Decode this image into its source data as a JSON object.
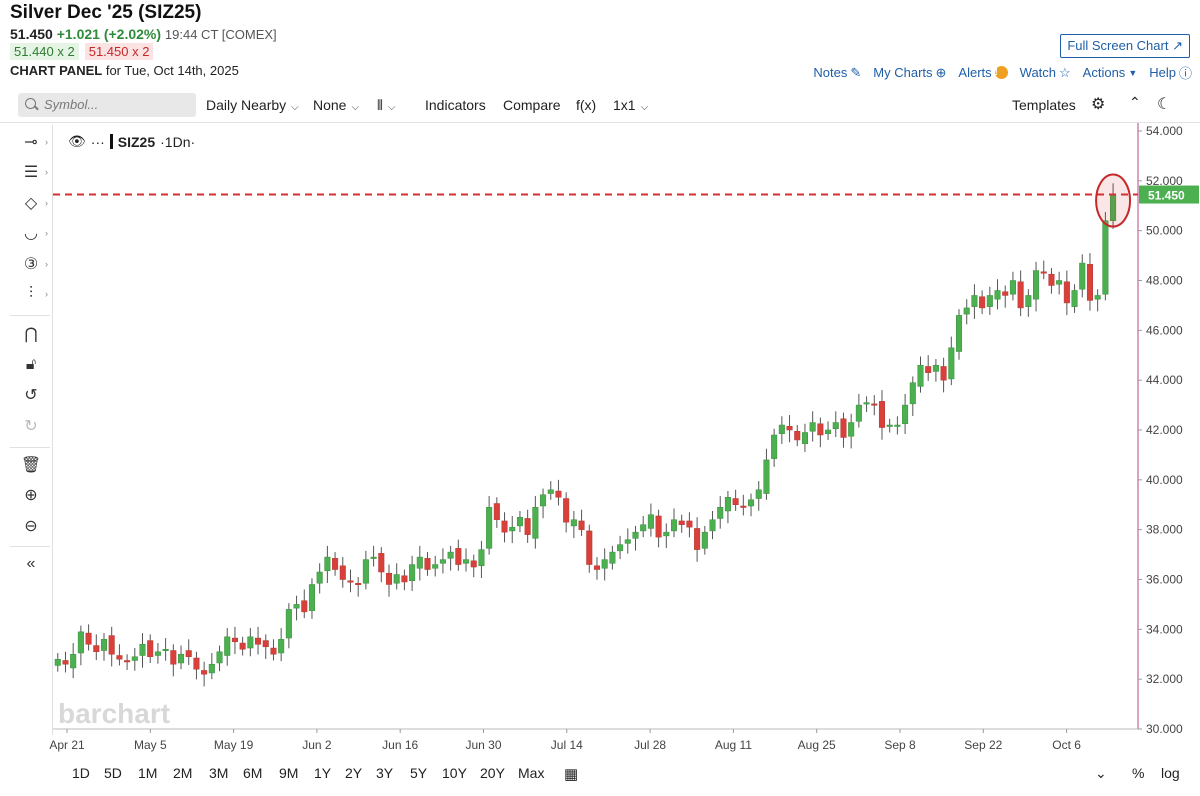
{
  "header": {
    "title": "Silver Dec '25 (SIZ25)",
    "last": "51.450",
    "change": "+1.021 (+2.02%)",
    "time": "19:44 CT [COMEX]",
    "bid": "51.440 x 2",
    "ask": "51.450 x 2",
    "panel_label": "CHART PANEL",
    "panel_date": "for Tue, Oct 14th, 2025"
  },
  "links": {
    "fullscreen": "Full Screen Chart",
    "notes": "Notes",
    "mycharts": "My Charts",
    "alerts": "Alerts",
    "watch": "Watch",
    "actions": "Actions",
    "help": "Help"
  },
  "toolbar": {
    "search_placeholder": "Symbol...",
    "period": "Daily Nearby",
    "none": "None",
    "indicators": "Indicators",
    "compare": "Compare",
    "fx": "f(x)",
    "layout": "1x1",
    "templates": "Templates"
  },
  "legend": {
    "symbol": "SIZ25",
    "interval": "·1Dn·"
  },
  "watermark": "barchart",
  "ranges": [
    "1D",
    "5D",
    "1M",
    "2M",
    "3M",
    "6M",
    "9M",
    "1Y",
    "2Y",
    "3Y",
    "5Y",
    "10Y",
    "20Y",
    "Max"
  ],
  "bottom_right": {
    "percent": "%",
    "log": "log"
  },
  "colors": {
    "up": "#4caf50",
    "down": "#d9403a",
    "price_line": "#d32f2f",
    "axis": "#b5478c",
    "link": "#1f5fa8"
  },
  "chart_data": {
    "type": "candlestick",
    "ylim": [
      30,
      54
    ],
    "yticks": [
      "54.000",
      "52.000",
      "50.000",
      "48.000",
      "46.000",
      "44.000",
      "42.000",
      "40.000",
      "38.000",
      "36.000",
      "34.000",
      "32.000",
      "30.000"
    ],
    "xticks": [
      "Apr 21",
      "May 5",
      "May 19",
      "Jun 2",
      "Jun 16",
      "Jun 30",
      "Jul 14",
      "Jul 28",
      "Aug 11",
      "Aug 25",
      "Sep 8",
      "Sep 22",
      "Oct 6"
    ],
    "last_price_label": "51.450",
    "last_price": 51.45,
    "closes": [
      32.8,
      32.6,
      33.0,
      33.9,
      33.4,
      33.1,
      33.6,
      33.0,
      32.8,
      32.7,
      32.9,
      33.4,
      32.9,
      33.1,
      33.2,
      32.6,
      33.0,
      32.9,
      32.4,
      32.2,
      32.6,
      33.1,
      33.7,
      33.5,
      33.2,
      33.7,
      33.4,
      33.3,
      33.0,
      33.6,
      34.8,
      35.0,
      34.7,
      35.8,
      36.3,
      36.9,
      36.4,
      36.0,
      35.9,
      35.8,
      36.8,
      36.9,
      36.3,
      35.8,
      36.2,
      35.9,
      36.6,
      36.9,
      36.4,
      36.6,
      36.8,
      37.1,
      36.6,
      36.8,
      36.5,
      37.2,
      38.9,
      38.4,
      37.9,
      38.1,
      38.5,
      37.8,
      38.9,
      39.4,
      39.6,
      39.3,
      38.3,
      38.4,
      38.0,
      36.6,
      36.4,
      36.8,
      37.1,
      37.4,
      37.6,
      37.9,
      38.2,
      38.6,
      37.7,
      37.9,
      38.4,
      38.2,
      38.1,
      37.2,
      37.9,
      38.4,
      38.9,
      39.3,
      39.0,
      38.9,
      39.2,
      39.6,
      40.8,
      41.8,
      42.2,
      42.0,
      41.6,
      41.9,
      42.3,
      41.8,
      42.0,
      42.3,
      41.7,
      42.3,
      43.0,
      43.1,
      43.0,
      42.1,
      42.2,
      42.2,
      43.0,
      43.9,
      44.6,
      44.3,
      44.6,
      44.0,
      45.3,
      46.6,
      46.9,
      47.4,
      46.9,
      47.4,
      47.6,
      47.4,
      48.0,
      46.9,
      47.4,
      48.4,
      48.3,
      47.8,
      48.0,
      47.1,
      47.6,
      48.7,
      47.2,
      47.4,
      50.4,
      51.45
    ]
  }
}
